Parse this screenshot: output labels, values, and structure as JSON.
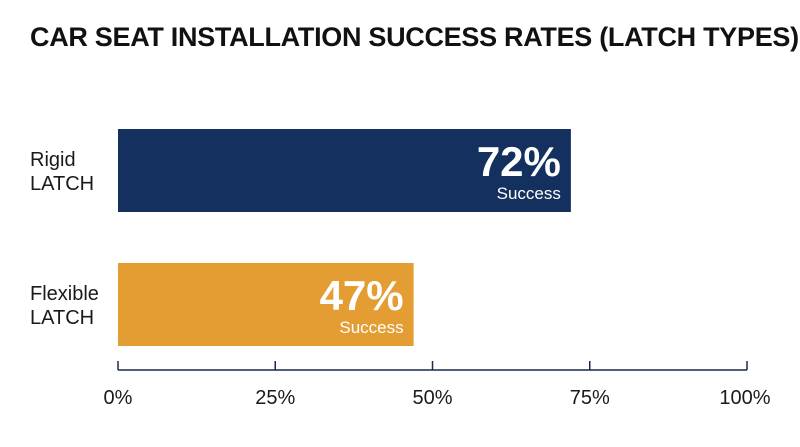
{
  "chart_data": {
    "type": "bar",
    "orientation": "horizontal",
    "title": "CAR SEAT INSTALLATION SUCCESS RATES (LATCH TYPES)",
    "categories": [
      [
        "Rigid",
        "LATCH"
      ],
      [
        "Flexible",
        "LATCH"
      ]
    ],
    "values": [
      72,
      47
    ],
    "value_labels": [
      "72%",
      "47%"
    ],
    "sublabel": "Success",
    "colors": [
      "#14305e",
      "#e49d32"
    ],
    "xlim": [
      0,
      100
    ],
    "x_ticks": [
      0,
      25,
      50,
      75,
      100
    ],
    "x_tick_labels": [
      "0%",
      "25%",
      "50%",
      "75%",
      "100%"
    ],
    "grid": false,
    "legend": "none"
  }
}
